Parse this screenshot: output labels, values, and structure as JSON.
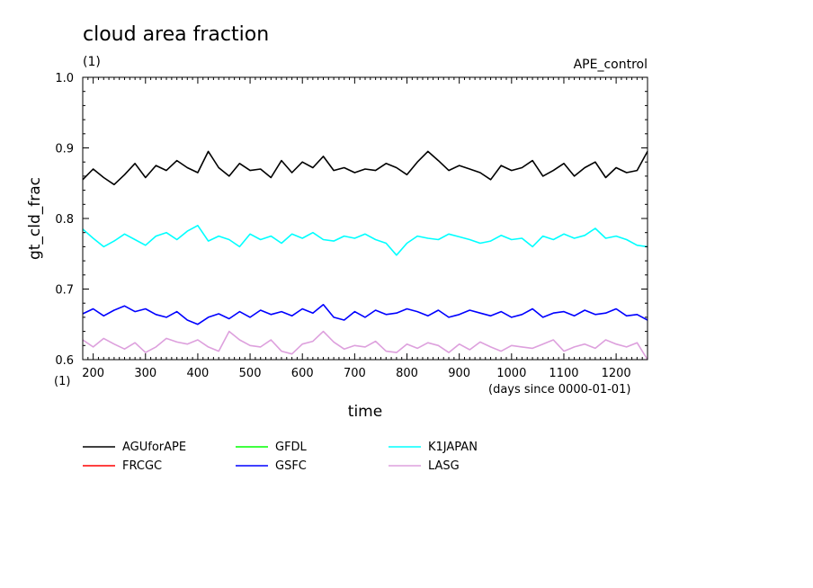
{
  "chart_data": {
    "type": "line",
    "title": "cloud area fraction",
    "units_label": "(1)",
    "experiment": "APE_control",
    "xlabel": "time",
    "x_units": "(days since 0000-01-01)",
    "ylabel": "gt_cld_frac",
    "y_units": "(1)",
    "xlim": [
      180,
      1260
    ],
    "ylim": [
      0.6,
      1.0
    ],
    "x_ticks": [
      "200",
      "300",
      "400",
      "500",
      "600",
      "700",
      "800",
      "900",
      "1000",
      "1100",
      "1200"
    ],
    "x_tick_values": [
      200,
      300,
      400,
      500,
      600,
      700,
      800,
      900,
      1000,
      1100,
      1200
    ],
    "y_ticks": [
      "0.6",
      "0.7",
      "0.8",
      "0.9",
      "1.0"
    ],
    "y_tick_values": [
      0.6,
      0.7,
      0.8,
      0.9,
      1.0
    ],
    "grid": false,
    "legend_position": "bottom-left",
    "series": [
      {
        "name": "AGUforAPE",
        "color": "#000000",
        "x": [
          180,
          200,
          220,
          240,
          260,
          280,
          300,
          320,
          340,
          360,
          380,
          400,
          420,
          440,
          460,
          480,
          500,
          520,
          540,
          560,
          580,
          600,
          620,
          640,
          660,
          680,
          700,
          720,
          740,
          760,
          780,
          800,
          820,
          840,
          860,
          880,
          900,
          920,
          940,
          960,
          980,
          1000,
          1020,
          1040,
          1060,
          1080,
          1100,
          1120,
          1140,
          1160,
          1180,
          1200,
          1220,
          1240,
          1260
        ],
        "y": [
          0.855,
          0.87,
          0.858,
          0.848,
          0.862,
          0.878,
          0.858,
          0.875,
          0.868,
          0.882,
          0.872,
          0.865,
          0.895,
          0.872,
          0.86,
          0.878,
          0.868,
          0.87,
          0.858,
          0.882,
          0.865,
          0.88,
          0.872,
          0.888,
          0.868,
          0.872,
          0.865,
          0.87,
          0.868,
          0.878,
          0.872,
          0.862,
          0.88,
          0.895,
          0.882,
          0.868,
          0.875,
          0.87,
          0.865,
          0.855,
          0.875,
          0.868,
          0.872,
          0.882,
          0.86,
          0.868,
          0.878,
          0.86,
          0.872,
          0.88,
          0.858,
          0.872,
          0.865,
          0.868,
          0.895
        ]
      },
      {
        "name": "FRCGC",
        "color": "#ff0000",
        "x": [],
        "y": []
      },
      {
        "name": "GFDL",
        "color": "#00ff00",
        "x": [],
        "y": []
      },
      {
        "name": "GSFC",
        "color": "#0000ff",
        "x": [
          180,
          200,
          220,
          240,
          260,
          280,
          300,
          320,
          340,
          360,
          380,
          400,
          420,
          440,
          460,
          480,
          500,
          520,
          540,
          560,
          580,
          600,
          620,
          640,
          660,
          680,
          700,
          720,
          740,
          760,
          780,
          800,
          820,
          840,
          860,
          880,
          900,
          920,
          940,
          960,
          980,
          1000,
          1020,
          1040,
          1060,
          1080,
          1100,
          1120,
          1140,
          1160,
          1180,
          1200,
          1220,
          1240,
          1260
        ],
        "y": [
          0.665,
          0.672,
          0.662,
          0.67,
          0.676,
          0.668,
          0.672,
          0.664,
          0.66,
          0.668,
          0.656,
          0.65,
          0.66,
          0.665,
          0.658,
          0.668,
          0.66,
          0.67,
          0.664,
          0.668,
          0.662,
          0.672,
          0.666,
          0.678,
          0.66,
          0.656,
          0.668,
          0.66,
          0.67,
          0.664,
          0.666,
          0.672,
          0.668,
          0.662,
          0.67,
          0.66,
          0.664,
          0.67,
          0.666,
          0.662,
          0.668,
          0.66,
          0.664,
          0.672,
          0.66,
          0.666,
          0.668,
          0.662,
          0.67,
          0.664,
          0.666,
          0.672,
          0.662,
          0.664,
          0.656
        ]
      },
      {
        "name": "K1JAPAN",
        "color": "#00ffff",
        "x": [
          180,
          200,
          220,
          240,
          260,
          280,
          300,
          320,
          340,
          360,
          380,
          400,
          420,
          440,
          460,
          480,
          500,
          520,
          540,
          560,
          580,
          600,
          620,
          640,
          660,
          680,
          700,
          720,
          740,
          760,
          780,
          800,
          820,
          840,
          860,
          880,
          900,
          920,
          940,
          960,
          980,
          1000,
          1020,
          1040,
          1060,
          1080,
          1100,
          1120,
          1140,
          1160,
          1180,
          1200,
          1220,
          1240,
          1260
        ],
        "y": [
          0.785,
          0.772,
          0.76,
          0.768,
          0.778,
          0.77,
          0.762,
          0.775,
          0.78,
          0.77,
          0.782,
          0.79,
          0.768,
          0.775,
          0.77,
          0.76,
          0.778,
          0.77,
          0.775,
          0.765,
          0.778,
          0.772,
          0.78,
          0.77,
          0.768,
          0.775,
          0.772,
          0.778,
          0.77,
          0.765,
          0.748,
          0.765,
          0.775,
          0.772,
          0.77,
          0.778,
          0.774,
          0.77,
          0.765,
          0.768,
          0.776,
          0.77,
          0.772,
          0.76,
          0.775,
          0.77,
          0.778,
          0.772,
          0.776,
          0.786,
          0.772,
          0.775,
          0.77,
          0.762,
          0.76
        ]
      },
      {
        "name": "LASG",
        "color": "#dda0dd",
        "x": [
          180,
          200,
          220,
          240,
          260,
          280,
          300,
          320,
          340,
          360,
          380,
          400,
          420,
          440,
          460,
          480,
          500,
          520,
          540,
          560,
          580,
          600,
          620,
          640,
          660,
          680,
          700,
          720,
          740,
          760,
          780,
          800,
          820,
          840,
          860,
          880,
          900,
          920,
          940,
          960,
          980,
          1000,
          1020,
          1040,
          1060,
          1080,
          1100,
          1120,
          1140,
          1160,
          1180,
          1200,
          1220,
          1240,
          1260
        ],
        "y": [
          0.628,
          0.618,
          0.63,
          0.622,
          0.615,
          0.624,
          0.61,
          0.618,
          0.63,
          0.625,
          0.622,
          0.628,
          0.618,
          0.612,
          0.64,
          0.628,
          0.62,
          0.618,
          0.628,
          0.612,
          0.608,
          0.622,
          0.626,
          0.64,
          0.625,
          0.615,
          0.62,
          0.618,
          0.626,
          0.612,
          0.61,
          0.622,
          0.616,
          0.624,
          0.62,
          0.61,
          0.622,
          0.614,
          0.625,
          0.618,
          0.612,
          0.62,
          0.618,
          0.616,
          0.622,
          0.628,
          0.612,
          0.618,
          0.622,
          0.616,
          0.628,
          0.622,
          0.618,
          0.624,
          0.6
        ]
      }
    ]
  }
}
